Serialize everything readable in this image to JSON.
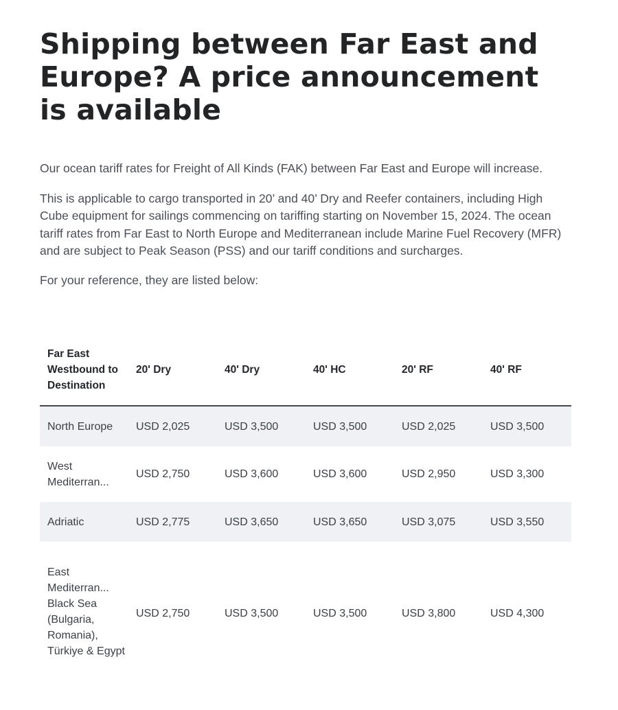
{
  "article": {
    "title": "Shipping between Far East and Europe? A price announcement is available",
    "paragraphs": [
      "Our ocean tariff rates for Freight of All Kinds (FAK) between Far East and Europe will increase.",
      "This is applicable to cargo transported in 20’ and 40’ Dry and Reefer containers, including High Cube equipment for sailings commencing on tariffing starting on November 15, 2024. The ocean tariff rates from Far East to North Europe and Mediterranean include Marine Fuel Recovery (MFR) and are subject to Peak Season (PSS) and our tariff conditions and surcharges.",
      "For your reference, they are listed below:"
    ]
  },
  "table": {
    "headers": [
      "Far East Westbound to Destination",
      "20' Dry",
      "40' Dry",
      "40' HC",
      "20' RF",
      "40' RF"
    ],
    "rows": [
      {
        "destination": "North Europe",
        "values": [
          "USD 2,025",
          "USD 3,500",
          "USD 3,500",
          "USD 2,025",
          "USD 3,500"
        ]
      },
      {
        "destination": "West Mediterran...",
        "values": [
          "USD 2,750",
          "USD 3,600",
          "USD 3,600",
          "USD 2,950",
          "USD 3,300"
        ]
      },
      {
        "destination": "Adriatic",
        "values": [
          "USD 2,775",
          "USD 3,650",
          "USD 3,650",
          "USD 3,075",
          "USD 3,550"
        ]
      },
      {
        "destination": "East Mediterran... Black Sea (Bulgaria, Romania), Türkiye & Egypt",
        "values": [
          "USD 2,750",
          "USD 3,500",
          "USD 3,500",
          "USD 3,800",
          "USD 4,300"
        ]
      }
    ]
  },
  "colors": {
    "title_text": "#222426",
    "body_text": "#4a4f57",
    "row_shade": "#f0f1f5",
    "header_rule": "#44474c"
  }
}
